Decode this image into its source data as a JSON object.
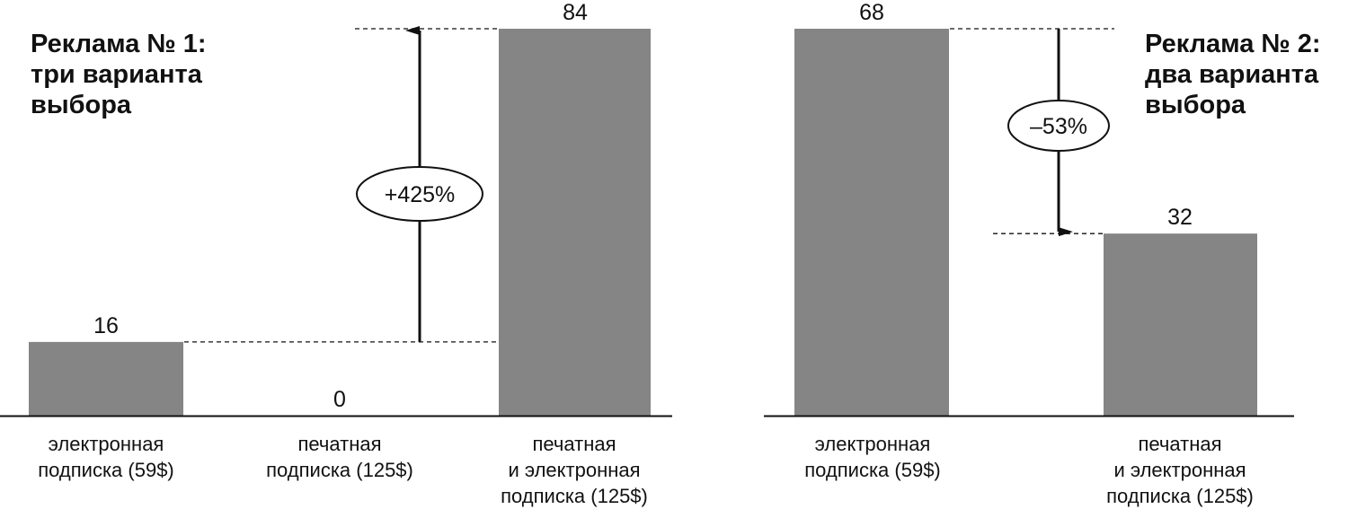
{
  "chart_data": [
    {
      "type": "bar",
      "title_lines": [
        "Реклама № 1:",
        "три варианта",
        "выбора"
      ],
      "categories": [
        [
          "электронная",
          "подписка (59$)"
        ],
        [
          "печатная",
          "подписка (125$)"
        ],
        [
          "печатная",
          "и электронная",
          "подписка (125$)"
        ]
      ],
      "values": [
        16,
        0,
        84
      ],
      "data_labels": [
        "16",
        "0",
        "84"
      ],
      "annotation": {
        "text": "+425%",
        "from_value": 16,
        "to_value": 84,
        "direction": "up"
      },
      "ylim": [
        0,
        84
      ],
      "bar_color": "#858585"
    },
    {
      "type": "bar",
      "title_lines": [
        "Реклама № 2:",
        "два варианта",
        "выбора"
      ],
      "categories": [
        [
          "электронная",
          "подписка (59$)"
        ],
        [
          "печатная",
          "и электронная",
          "подписка (125$)"
        ]
      ],
      "values": [
        68,
        32
      ],
      "data_labels": [
        "68",
        "32"
      ],
      "annotation": {
        "text": "–53%",
        "from_value": 68,
        "to_value": 32,
        "direction": "down"
      },
      "ylim": [
        0,
        68
      ],
      "bar_color": "#858585"
    }
  ]
}
